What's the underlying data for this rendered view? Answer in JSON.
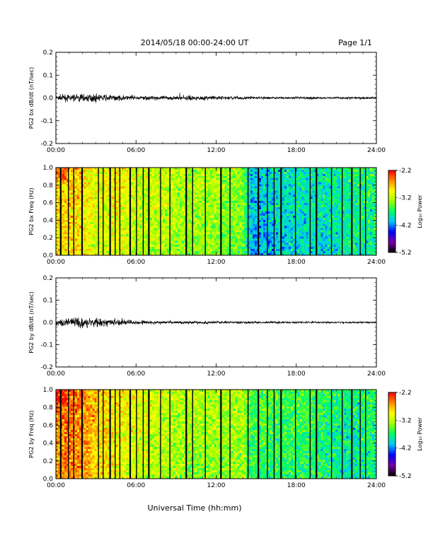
{
  "header": {
    "title": "2014/05/18  00:00-24:00 UT",
    "page": "Page 1/1"
  },
  "colors": {
    "axis": "#000000",
    "trace": "#000000",
    "colormap": [
      "#000000",
      "#7a00a8",
      "#0000ff",
      "#00c8ff",
      "#00ff64",
      "#a0ff00",
      "#ffff00",
      "#ff8c00",
      "#ff0000"
    ]
  },
  "chart_data": [
    {
      "type": "line",
      "name": "waveform-bx",
      "ylabel": "PG2 bx dB/dt (nT/sec)",
      "xlim": [
        0,
        24
      ],
      "ylim": [
        -0.2,
        0.2
      ],
      "xticks": [
        "00:00",
        "06:00",
        "12:00",
        "18:00",
        "24:00"
      ],
      "yticks": [
        "-0.2",
        "-0.1",
        "0.0",
        "0.1",
        "0.2"
      ],
      "envelope": {
        "hours": [
          0,
          1,
          2,
          3,
          4,
          5,
          6,
          8,
          10,
          12,
          14,
          16,
          17.5,
          18,
          20,
          22,
          23,
          24
        ],
        "amplitude": [
          0.02,
          0.025,
          0.03,
          0.025,
          0.022,
          0.02,
          0.017,
          0.014,
          0.016,
          0.015,
          0.012,
          0.008,
          0.007,
          0.01,
          0.007,
          0.008,
          0.012,
          0.006
        ]
      }
    },
    {
      "type": "heatmap",
      "name": "spectrogram-bx",
      "ylabel": "PG2 bx Freq (Hz)",
      "xlim": [
        0,
        24
      ],
      "ylim": [
        0,
        1
      ],
      "xticks": [
        "00:00",
        "06:00",
        "12:00",
        "18:00",
        "24:00"
      ],
      "yticks": [
        "0.0",
        "0.2",
        "0.4",
        "0.6",
        "0.8",
        "1.0"
      ],
      "colorbar": {
        "label": "Log₁₀ Power",
        "ticks": [
          "-2.2",
          "-3.2",
          "-4.2",
          "-5.2"
        ],
        "range": [
          -5.2,
          -2.2
        ]
      },
      "level_profile": {
        "hours": [
          0,
          1,
          2,
          3,
          4,
          5,
          6,
          8,
          10,
          12,
          13,
          14,
          14.5,
          15,
          16,
          18,
          20,
          22,
          24
        ],
        "log_power": [
          -2.9,
          -2.8,
          -2.9,
          -3.1,
          -3.0,
          -3.0,
          -3.2,
          -3.2,
          -3.3,
          -3.3,
          -3.4,
          -3.4,
          -4.0,
          -4.1,
          -4.0,
          -3.9,
          -3.9,
          -3.8,
          -3.7
        ]
      },
      "gaps_hours": [
        0.35,
        0.95,
        1.35,
        1.95,
        3.2,
        3.55,
        4.05,
        4.45,
        4.8,
        5.55,
        6.05,
        6.55,
        6.95,
        7.85,
        8.55,
        9.75,
        10.25,
        11.2,
        12.35,
        13.05,
        14.4,
        15.15,
        15.85,
        16.35,
        16.85,
        17.95,
        19.05,
        19.5,
        20.65,
        21.45,
        22.15,
        22.8,
        23.2
      ]
    },
    {
      "type": "line",
      "name": "waveform-by",
      "ylabel": "PG2 by dB/dt (nT/sec)",
      "xlim": [
        0,
        24
      ],
      "ylim": [
        -0.2,
        0.2
      ],
      "xticks": [
        "00:00",
        "06:00",
        "12:00",
        "18:00",
        "24:00"
      ],
      "yticks": [
        "-0.2",
        "-0.1",
        "0.0",
        "0.1",
        "0.2"
      ],
      "envelope": {
        "hours": [
          0,
          1,
          2,
          3,
          4,
          5,
          6,
          7,
          8,
          10,
          12,
          14,
          16,
          18,
          20,
          22,
          24
        ],
        "amplitude": [
          0.03,
          0.035,
          0.04,
          0.035,
          0.03,
          0.022,
          0.016,
          0.012,
          0.01,
          0.012,
          0.01,
          0.009,
          0.008,
          0.007,
          0.007,
          0.006,
          0.006
        ]
      }
    },
    {
      "type": "heatmap",
      "name": "spectrogram-by",
      "ylabel": "PG2 by Freq (Hz)",
      "xlabel": "Universal Time (hh:mm)",
      "xlim": [
        0,
        24
      ],
      "ylim": [
        0,
        1
      ],
      "xticks": [
        "00:00",
        "06:00",
        "12:00",
        "18:00",
        "24:00"
      ],
      "yticks": [
        "0.0",
        "0.2",
        "0.4",
        "0.6",
        "0.8",
        "1.0"
      ],
      "colorbar": {
        "label": "Log₁₀ Power",
        "ticks": [
          "-2.2",
          "-3.2",
          "-4.2",
          "-5.2"
        ],
        "range": [
          -5.2,
          -2.2
        ]
      },
      "level_profile": {
        "hours": [
          0,
          1,
          2,
          3,
          4,
          5,
          6,
          8,
          10,
          12,
          14,
          14.5,
          16,
          18,
          20,
          22,
          24
        ],
        "log_power": [
          -2.6,
          -2.5,
          -2.6,
          -2.8,
          -2.9,
          -3.0,
          -3.1,
          -3.2,
          -3.3,
          -3.3,
          -3.3,
          -3.6,
          -3.6,
          -3.6,
          -3.7,
          -3.8,
          -3.7
        ]
      },
      "gaps_hours": [
        0.35,
        0.95,
        1.35,
        1.95,
        3.2,
        3.55,
        4.05,
        4.45,
        4.8,
        5.55,
        6.05,
        6.55,
        6.95,
        7.85,
        8.55,
        9.75,
        10.25,
        11.2,
        12.35,
        13.05,
        14.4,
        15.15,
        15.85,
        16.35,
        16.85,
        17.95,
        19.05,
        19.5,
        20.65,
        21.45,
        22.15,
        22.8,
        23.2
      ]
    }
  ]
}
